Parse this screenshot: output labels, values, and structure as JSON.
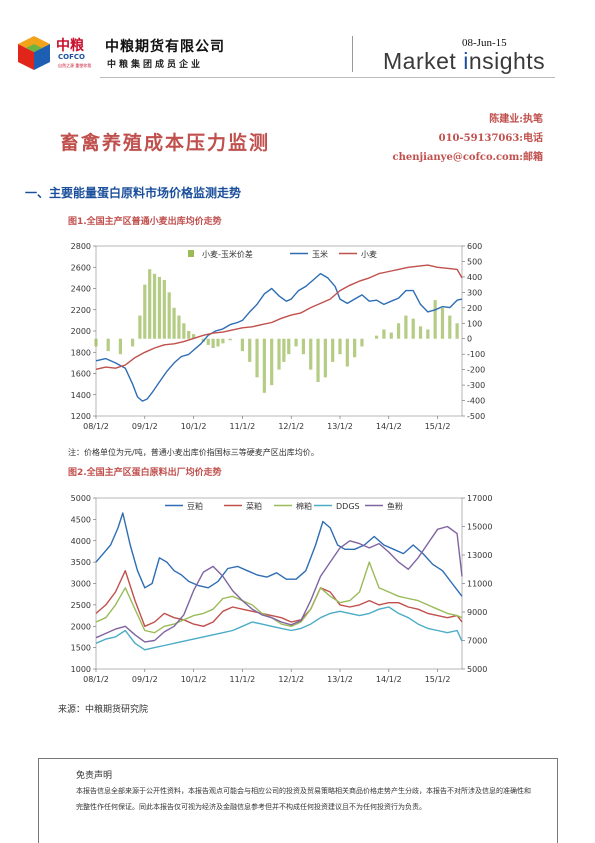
{
  "header": {
    "logo_cn": "中粮",
    "logo_en": "COFCO",
    "logo_sub": "自然之源 重塑你我",
    "company_name": "中粮期货有限公司",
    "company_sub": "中粮集团成员企业",
    "date": "08-Jun-15",
    "brand_part1": "Market ",
    "brand_i": "i",
    "brand_part2": "nsights"
  },
  "author": {
    "line1": "陈建业:执笔",
    "line2": "010-59137063:电话",
    "line3": "chenjianye@cofco.com:邮箱"
  },
  "title": "畜禽养殖成本压力监测",
  "section_heading": "一、主要能量蛋白原料市场价格监测走势",
  "figure1": {
    "caption": "图1.全国主产区普通小麦出库均价走势",
    "note": "注：价格单位为元/吨，普通小麦出库价指国标三等硬麦产区出库均价。"
  },
  "figure2": {
    "caption": "图2.全国主产区蛋白原料出厂均价走势"
  },
  "source": "来源：中粮期货研究院",
  "disclaimer": {
    "title": "免责声明",
    "text": "本报告信息全部来源于公开性资料，本报告观点可能会与相应公司的投资及贸易策略相关商品价格走势产生分歧，本报告不对所涉及信息的准确性和完整性作任何保证。同此本报告仅可视为经济及金融信息参考但并不构成任何投资建议且不为任何投资行为负责。"
  },
  "chart_data": [
    {
      "type": "line",
      "title": "",
      "x_ticks": [
        "08/1/2",
        "09/1/2",
        "10/1/2",
        "11/1/2",
        "12/1/2",
        "13/1/2",
        "14/1/2",
        "15/1/2"
      ],
      "y_left_ticks": [
        1200,
        1400,
        1600,
        1800,
        2000,
        2200,
        2400,
        2600,
        2800
      ],
      "y_right_ticks": [
        -500,
        -400,
        -300,
        -200,
        -100,
        0,
        100,
        200,
        300,
        400,
        500,
        600
      ],
      "ylim_left": [
        1200,
        2800
      ],
      "ylim_right": [
        -500,
        600
      ],
      "x_range": [
        2008.0,
        2015.5
      ],
      "legend_position": "top",
      "series": [
        {
          "name": "小麦-玉米价差",
          "axis": "right",
          "kind": "bar",
          "color": "#9bbb59",
          "x": [
            2008.0,
            2008.25,
            2008.5,
            2008.75,
            2008.9,
            2009.0,
            2009.1,
            2009.2,
            2009.3,
            2009.4,
            2009.5,
            2009.6,
            2009.7,
            2009.8,
            2009.9,
            2010.0,
            2010.1,
            2010.2,
            2010.3,
            2010.4,
            2010.5,
            2010.6,
            2010.75,
            2010.9,
            2011.0,
            2011.15,
            2011.3,
            2011.45,
            2011.6,
            2011.75,
            2011.85,
            2011.95,
            2012.1,
            2012.25,
            2012.4,
            2012.55,
            2012.7,
            2012.85,
            2013.0,
            2013.15,
            2013.3,
            2013.45,
            2013.6,
            2013.75,
            2013.9,
            2014.05,
            2014.2,
            2014.35,
            2014.5,
            2014.65,
            2014.8,
            2014.95,
            2015.1,
            2015.25,
            2015.4
          ],
          "values": [
            -50,
            -80,
            -100,
            -50,
            150,
            350,
            450,
            420,
            400,
            380,
            300,
            200,
            150,
            100,
            50,
            30,
            0,
            -20,
            -40,
            -60,
            -50,
            -30,
            -10,
            0,
            -80,
            -150,
            -250,
            -350,
            -300,
            -200,
            -150,
            -100,
            -50,
            -100,
            -200,
            -280,
            -250,
            -150,
            -100,
            -180,
            -120,
            -50,
            0,
            20,
            60,
            40,
            100,
            150,
            130,
            80,
            60,
            250,
            200,
            150,
            100
          ]
        },
        {
          "name": "玉米",
          "axis": "left",
          "kind": "line",
          "color": "#2e6db4",
          "x": [
            2008.0,
            2008.2,
            2008.4,
            2008.6,
            2008.75,
            2008.85,
            2008.95,
            2009.05,
            2009.15,
            2009.3,
            2009.45,
            2009.6,
            2009.75,
            2009.9,
            2010.0,
            2010.15,
            2010.3,
            2010.45,
            2010.6,
            2010.75,
            2010.9,
            2011.0,
            2011.15,
            2011.3,
            2011.45,
            2011.6,
            2011.75,
            2011.9,
            2012.0,
            2012.15,
            2012.3,
            2012.45,
            2012.6,
            2012.75,
            2012.9,
            2013.0,
            2013.15,
            2013.3,
            2013.45,
            2013.6,
            2013.75,
            2013.9,
            2014.05,
            2014.2,
            2014.35,
            2014.5,
            2014.65,
            2014.8,
            2014.95,
            2015.1,
            2015.25,
            2015.4,
            2015.5
          ],
          "values": [
            1720,
            1740,
            1700,
            1650,
            1500,
            1380,
            1340,
            1360,
            1420,
            1520,
            1620,
            1700,
            1760,
            1780,
            1820,
            1880,
            1960,
            2000,
            2020,
            2060,
            2080,
            2100,
            2180,
            2250,
            2350,
            2400,
            2330,
            2280,
            2300,
            2380,
            2420,
            2480,
            2540,
            2500,
            2420,
            2300,
            2260,
            2300,
            2340,
            2280,
            2290,
            2250,
            2280,
            2310,
            2380,
            2380,
            2250,
            2180,
            2200,
            2230,
            2220,
            2290,
            2300
          ]
        },
        {
          "name": "小麦",
          "axis": "left",
          "kind": "line",
          "color": "#c0504d",
          "x": [
            2008.0,
            2008.2,
            2008.4,
            2008.6,
            2008.8,
            2009.0,
            2009.2,
            2009.4,
            2009.6,
            2009.8,
            2010.0,
            2010.2,
            2010.4,
            2010.6,
            2010.8,
            2011.0,
            2011.2,
            2011.4,
            2011.6,
            2011.8,
            2012.0,
            2012.2,
            2012.4,
            2012.6,
            2012.8,
            2013.0,
            2013.2,
            2013.4,
            2013.6,
            2013.8,
            2014.0,
            2014.2,
            2014.4,
            2014.6,
            2014.8,
            2015.0,
            2015.2,
            2015.4,
            2015.5
          ],
          "values": [
            1640,
            1660,
            1650,
            1680,
            1750,
            1800,
            1840,
            1870,
            1880,
            1900,
            1930,
            1960,
            1980,
            1990,
            2010,
            2030,
            2040,
            2060,
            2080,
            2120,
            2150,
            2170,
            2220,
            2260,
            2300,
            2380,
            2430,
            2470,
            2500,
            2540,
            2560,
            2580,
            2600,
            2610,
            2620,
            2600,
            2590,
            2580,
            2500
          ]
        }
      ]
    },
    {
      "type": "line",
      "title": "",
      "x_ticks": [
        "08/1/2",
        "09/1/2",
        "10/1/2",
        "11/1/2",
        "12/1/2",
        "13/1/2",
        "14/1/2",
        "15/1/2"
      ],
      "y_left_ticks": [
        1000,
        1500,
        2000,
        2500,
        3000,
        3500,
        4000,
        4500,
        5000
      ],
      "y_right_ticks": [
        5000,
        7000,
        9000,
        11000,
        13000,
        15000,
        17000
      ],
      "ylim_left": [
        1000,
        5000
      ],
      "ylim_right": [
        5000,
        17000
      ],
      "x_range": [
        2008.0,
        2015.5
      ],
      "legend_position": "top",
      "series": [
        {
          "name": "豆粕",
          "axis": "left",
          "color": "#2e6db4",
          "x": [
            2008.0,
            2008.15,
            2008.3,
            2008.45,
            2008.55,
            2008.7,
            2008.85,
            2009.0,
            2009.15,
            2009.3,
            2009.45,
            2009.6,
            2009.75,
            2009.9,
            2010.1,
            2010.3,
            2010.5,
            2010.7,
            2010.9,
            2011.1,
            2011.3,
            2011.5,
            2011.7,
            2011.9,
            2012.1,
            2012.3,
            2012.5,
            2012.65,
            2012.8,
            2012.95,
            2013.1,
            2013.3,
            2013.5,
            2013.7,
            2013.9,
            2014.1,
            2014.3,
            2014.5,
            2014.7,
            2014.9,
            2015.1,
            2015.3,
            2015.5
          ],
          "values": [
            3500,
            3700,
            3900,
            4300,
            4650,
            3900,
            3300,
            2900,
            3000,
            3600,
            3500,
            3300,
            3200,
            3050,
            2950,
            2900,
            3050,
            3350,
            3400,
            3300,
            3200,
            3150,
            3250,
            3100,
            3100,
            3300,
            3900,
            4450,
            4300,
            3900,
            3800,
            3800,
            3900,
            4100,
            3900,
            3800,
            3700,
            3900,
            3700,
            3450,
            3300,
            3000,
            2700
          ]
        },
        {
          "name": "菜粕",
          "axis": "left",
          "color": "#c0504d",
          "x": [
            2008.0,
            2008.2,
            2008.4,
            2008.6,
            2008.8,
            2009.0,
            2009.2,
            2009.4,
            2009.6,
            2009.8,
            2010.0,
            2010.2,
            2010.4,
            2010.6,
            2010.8,
            2011.0,
            2011.2,
            2011.4,
            2011.6,
            2011.8,
            2012.0,
            2012.2,
            2012.4,
            2012.6,
            2012.8,
            2013.0,
            2013.2,
            2013.4,
            2013.6,
            2013.8,
            2014.0,
            2014.2,
            2014.4,
            2014.6,
            2014.8,
            2015.0,
            2015.2,
            2015.4,
            2015.5
          ],
          "values": [
            2300,
            2500,
            2800,
            3300,
            2600,
            2000,
            2100,
            2300,
            2200,
            2150,
            2050,
            2000,
            2100,
            2350,
            2450,
            2400,
            2350,
            2300,
            2250,
            2200,
            2100,
            2150,
            2400,
            2900,
            2800,
            2500,
            2450,
            2500,
            2600,
            2500,
            2550,
            2550,
            2450,
            2400,
            2300,
            2250,
            2200,
            2250,
            2100
          ]
        },
        {
          "name": "棉粕",
          "axis": "left",
          "color": "#9bbb59",
          "x": [
            2008.0,
            2008.2,
            2008.4,
            2008.6,
            2008.8,
            2009.0,
            2009.2,
            2009.4,
            2009.6,
            2009.8,
            2010.0,
            2010.2,
            2010.4,
            2010.6,
            2010.8,
            2011.0,
            2011.2,
            2011.4,
            2011.6,
            2011.8,
            2012.0,
            2012.2,
            2012.4,
            2012.6,
            2012.8,
            2013.0,
            2013.2,
            2013.4,
            2013.6,
            2013.8,
            2014.0,
            2014.2,
            2014.4,
            2014.6,
            2014.8,
            2015.0,
            2015.2,
            2015.4,
            2015.5
          ],
          "values": [
            2100,
            2200,
            2500,
            2900,
            2400,
            1900,
            1850,
            2000,
            2050,
            2150,
            2250,
            2300,
            2400,
            2650,
            2700,
            2600,
            2500,
            2300,
            2200,
            2050,
            2000,
            2100,
            2400,
            2900,
            2700,
            2550,
            2600,
            2800,
            3500,
            2900,
            2800,
            2700,
            2650,
            2600,
            2500,
            2400,
            2300,
            2250,
            2200
          ]
        },
        {
          "name": "DDGS",
          "axis": "left",
          "color": "#4bacc6",
          "x": [
            2008.0,
            2008.2,
            2008.4,
            2008.6,
            2008.8,
            2009.0,
            2009.2,
            2009.4,
            2009.6,
            2009.8,
            2010.0,
            2010.2,
            2010.4,
            2010.6,
            2010.8,
            2011.0,
            2011.2,
            2011.4,
            2011.6,
            2011.8,
            2012.0,
            2012.2,
            2012.4,
            2012.6,
            2012.8,
            2013.0,
            2013.2,
            2013.4,
            2013.6,
            2013.8,
            2014.0,
            2014.2,
            2014.4,
            2014.6,
            2014.8,
            2015.0,
            2015.2,
            2015.4,
            2015.5
          ],
          "values": [
            1600,
            1700,
            1750,
            1900,
            1600,
            1450,
            1500,
            1550,
            1600,
            1650,
            1700,
            1750,
            1800,
            1850,
            1900,
            2000,
            2100,
            2050,
            2000,
            1950,
            1900,
            1950,
            2050,
            2200,
            2300,
            2350,
            2300,
            2250,
            2300,
            2400,
            2450,
            2300,
            2200,
            2050,
            1950,
            1900,
            1850,
            1900,
            1650
          ]
        },
        {
          "name": "鱼粉",
          "axis": "right",
          "color": "#8064a2",
          "x": [
            2008.0,
            2008.2,
            2008.4,
            2008.6,
            2008.8,
            2009.0,
            2009.2,
            2009.4,
            2009.6,
            2009.8,
            2010.0,
            2010.2,
            2010.4,
            2010.6,
            2010.8,
            2011.0,
            2011.2,
            2011.4,
            2011.6,
            2011.8,
            2012.0,
            2012.2,
            2012.4,
            2012.6,
            2012.8,
            2013.0,
            2013.2,
            2013.4,
            2013.6,
            2013.8,
            2014.0,
            2014.2,
            2014.4,
            2014.6,
            2014.8,
            2015.0,
            2015.2,
            2015.4,
            2015.5
          ],
          "values": [
            7200,
            7500,
            7800,
            8000,
            7400,
            6900,
            7000,
            7600,
            8000,
            8800,
            10500,
            11800,
            12200,
            11500,
            10500,
            9800,
            9200,
            8800,
            8600,
            8300,
            8100,
            8400,
            9800,
            11500,
            12500,
            13500,
            14000,
            13800,
            13500,
            13800,
            13200,
            12500,
            12000,
            12800,
            13800,
            14800,
            15000,
            14500,
            11500
          ]
        }
      ]
    }
  ]
}
